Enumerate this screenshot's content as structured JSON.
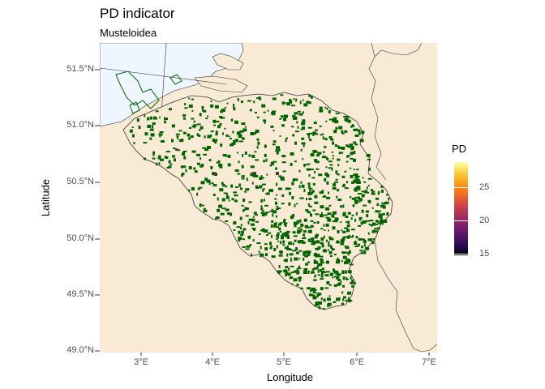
{
  "title": "PD indicator",
  "subtitle": "Musteloidea",
  "axes": {
    "x_title": "Longitude",
    "y_title": "Latitude",
    "x_ticks": [
      "3°E",
      "4°E",
      "5°E",
      "6°E",
      "7°E"
    ],
    "y_ticks": [
      "51.5°N",
      "51.0°N",
      "50.5°N",
      "50.0°N",
      "49.5°N",
      "49.0°N"
    ],
    "x_range": [
      2.5,
      7.1
    ],
    "y_range": [
      48.97,
      51.75
    ]
  },
  "legend": {
    "title": "PD",
    "ticks": [
      "25",
      "20",
      "15"
    ],
    "range": [
      14.8,
      28.8
    ],
    "palette": "inferno"
  },
  "colors": {
    "sea": "#eef6ff",
    "land": "#f9ead6",
    "occurrence_cells": "#006400",
    "border_line": "#333333"
  }
}
